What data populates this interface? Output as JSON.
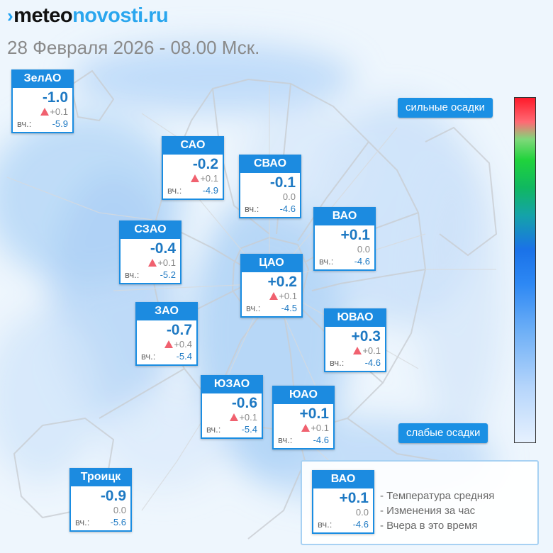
{
  "site": {
    "logo_main": "meteo",
    "logo_accent": "novosti.ru",
    "logo_mark": "›"
  },
  "subtitle": "28 Февраля 2026 - 08.00 Мск.",
  "yesterday_label": "вч.:",
  "districts": [
    {
      "name": "ЗелАО",
      "temp": "-1.0",
      "change": "+0.1",
      "trend": "up",
      "yesterday": "-5.9"
    },
    {
      "name": "САО",
      "temp": "-0.2",
      "change": "+0.1",
      "trend": "up",
      "yesterday": "-4.9"
    },
    {
      "name": "СВАО",
      "temp": "-0.1",
      "change": "0.0",
      "trend": "none",
      "yesterday": "-4.6"
    },
    {
      "name": "ВАО",
      "temp": "+0.1",
      "change": "0.0",
      "trend": "none",
      "yesterday": "-4.6"
    },
    {
      "name": "СЗАО",
      "temp": "-0.4",
      "change": "+0.1",
      "trend": "up",
      "yesterday": "-5.2"
    },
    {
      "name": "ЦАО",
      "temp": "+0.2",
      "change": "+0.1",
      "trend": "up",
      "yesterday": "-4.5"
    },
    {
      "name": "ЗАО",
      "temp": "-0.7",
      "change": "+0.4",
      "trend": "up",
      "yesterday": "-5.4"
    },
    {
      "name": "ЮВАО",
      "temp": "+0.3",
      "change": "+0.1",
      "trend": "up",
      "yesterday": "-4.6"
    },
    {
      "name": "ЮЗАО",
      "temp": "-0.6",
      "change": "+0.1",
      "trend": "up",
      "yesterday": "-5.4"
    },
    {
      "name": "ЮАО",
      "temp": "+0.1",
      "change": "+0.1",
      "trend": "up",
      "yesterday": "-4.6"
    },
    {
      "name": "Троицк",
      "temp": "-0.9",
      "change": "0.0",
      "trend": "none",
      "yesterday": "-5.6"
    }
  ],
  "scale": {
    "high_label": "сильные осадки",
    "low_label": "слабые осадки",
    "colors": [
      "#ff1a2a",
      "#20d33c",
      "#1a72e8",
      "#e6f1fe"
    ]
  },
  "legend": {
    "example": {
      "name": "ВАО",
      "temp": "+0.1",
      "change": "0.0",
      "yesterday": "-4.6"
    },
    "lines": [
      "- Температура средняя",
      "- Изменения за час",
      "- Вчера в это время"
    ]
  }
}
